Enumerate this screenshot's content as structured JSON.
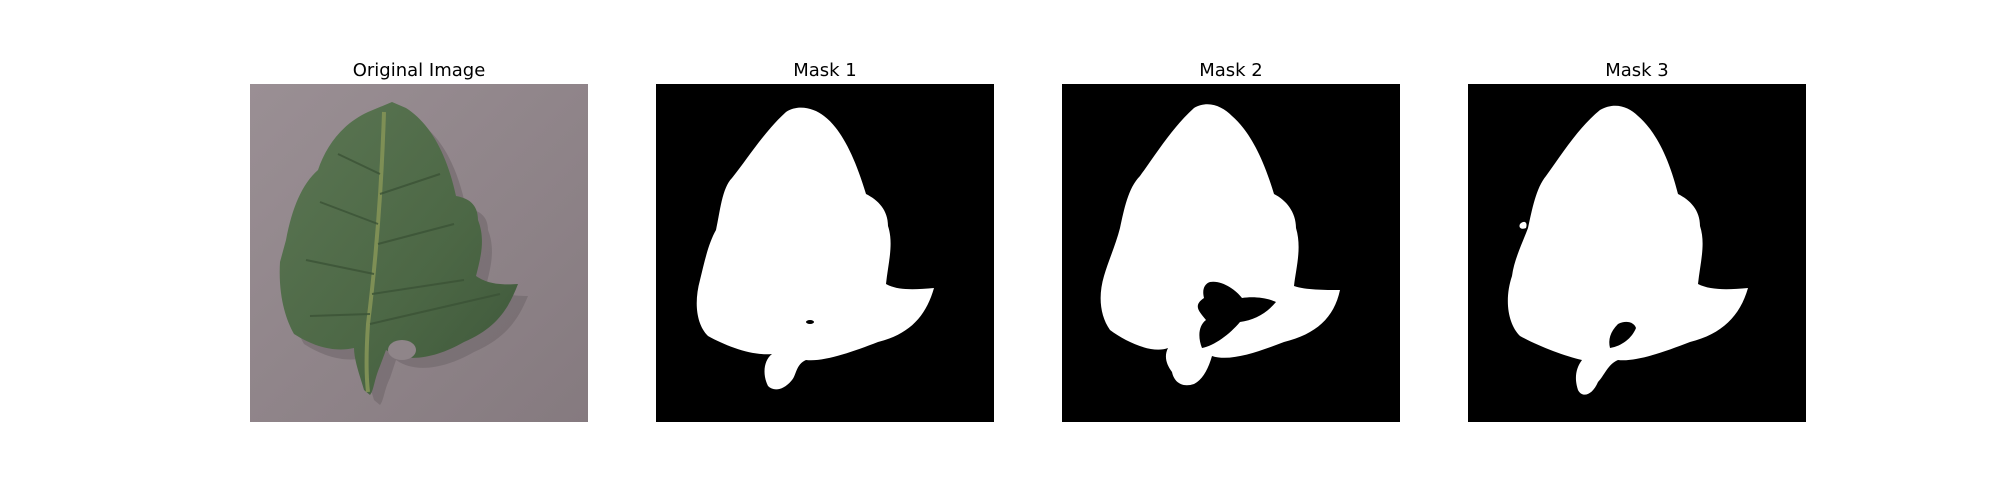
{
  "panels": [
    {
      "title": "Original Image",
      "kind": "photo"
    },
    {
      "title": "Mask 1",
      "kind": "mask"
    },
    {
      "title": "Mask 2",
      "kind": "mask"
    },
    {
      "title": "Mask 3",
      "kind": "mask"
    }
  ],
  "colors": {
    "background": "#ffffff",
    "mask_background": "#000000",
    "mask_foreground": "#ffffff",
    "photo_background": "#8f8589",
    "leaf": "#4f6a47"
  }
}
